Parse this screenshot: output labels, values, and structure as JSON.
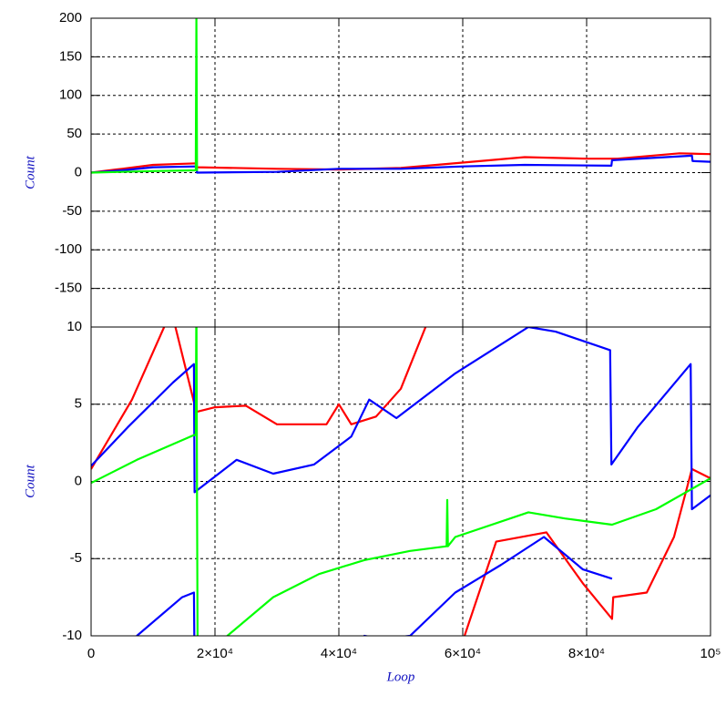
{
  "chart_data": [
    {
      "type": "line",
      "ylabel": "Count",
      "xlim": [
        0,
        100000
      ],
      "ylim": [
        -200,
        200
      ],
      "yticks": [
        200,
        150,
        100,
        50,
        0,
        -50,
        -100,
        -150
      ],
      "grid": true,
      "series": [
        {
          "color": "#ff0000",
          "x": [
            0,
            5000,
            10000,
            17000,
            17100,
            30000,
            40000,
            50000,
            60000,
            70000,
            80000,
            85000,
            95000,
            100000
          ],
          "values": [
            0,
            5,
            10,
            12,
            7,
            5,
            4,
            6,
            13,
            20,
            18,
            18,
            25,
            24
          ]
        },
        {
          "color": "#0000ff",
          "x": [
            0,
            5000,
            10000,
            17000,
            17100,
            30000,
            40000,
            50000,
            60000,
            70000,
            84000,
            84100,
            97000,
            97100,
            100000
          ],
          "values": [
            0,
            3,
            7,
            8,
            0,
            1,
            5,
            5,
            8,
            10,
            9,
            16,
            22,
            15,
            14
          ]
        },
        {
          "color": "#00ff00",
          "x": [
            0,
            10000,
            16900,
            17000,
            17100
          ],
          "values": [
            0,
            2,
            3,
            200,
            2
          ]
        }
      ]
    },
    {
      "type": "line",
      "ylabel": "Count",
      "xlabel": "Loop",
      "xlim": [
        0,
        100000
      ],
      "ylim": [
        -10,
        10
      ],
      "yticks": [
        10,
        5,
        0,
        -5,
        -10
      ],
      "xticks": [
        0,
        {
          "value": 20000,
          "label": "2×10⁴"
        },
        {
          "value": 40000,
          "label": "4×10⁴"
        },
        {
          "value": 60000,
          "label": "6×10⁴"
        },
        {
          "value": 80000,
          "label": "8×10⁴"
        },
        {
          "value": 100000,
          "label": "10⁵"
        }
      ],
      "grid": true,
      "series": [
        {
          "color": "#ff0000",
          "x": [
            0,
            6600,
            11800,
            13000,
            17000,
            20000,
            25000,
            30000,
            38000,
            40000,
            42000,
            46000,
            50000,
            54000,
            55000
          ],
          "values": [
            0.8,
            5.3,
            10,
            11,
            4.5,
            4.8,
            4.9,
            3.7,
            3.7,
            5,
            3.7,
            4.2,
            6,
            10,
            11
          ]
        },
        {
          "color": "#ff0000",
          "x": [
            59500,
            60300,
            65400,
            73500,
            79400,
            84100,
            84300,
            89700,
            94100,
            97000,
            100000
          ],
          "values": [
            -11,
            -10,
            -3.9,
            -3.3,
            -6.6,
            -8.9,
            -7.5,
            -7.2,
            -3.6,
            0.8,
            0.2
          ]
        },
        {
          "color": "#0000ff",
          "x": [
            0,
            5900,
            13200,
            16600,
            16700,
            20600,
            23500,
            29400,
            36000,
            42000,
            44900,
            49300,
            58800,
            70600,
            75000,
            83800,
            84000,
            88200,
            96800,
            97000,
            100000
          ],
          "values": [
            1,
            3.5,
            6.4,
            7.6,
            -0.7,
            0.5,
            1.4,
            0.5,
            1.1,
            2.9,
            5.3,
            4.1,
            7,
            10,
            9.7,
            8.5,
            1.1,
            3.5,
            7.6,
            -1.8,
            -0.9
          ]
        },
        {
          "color": "#0000ff",
          "x": [
            6500,
            7400,
            14700,
            16600,
            16700,
            null,
            43500,
            44100,
            47000,
            51500,
            58800,
            66200,
            73100,
            79400,
            84100
          ],
          "values": [
            -11,
            -10,
            -7.5,
            -7.2,
            -12,
            null,
            -11,
            -10,
            -10.2,
            -10,
            -7.2,
            -5.4,
            -3.6,
            -5.7,
            -6.3
          ]
        },
        {
          "color": "#00ff00",
          "x": [
            0,
            7400,
            16600,
            16900,
            17000,
            17100,
            17200,
            null,
            21000,
            22000,
            29400,
            36800,
            44100,
            51500,
            57400,
            57500,
            57600,
            58800,
            70600,
            76500,
            84100,
            91200,
            100000
          ],
          "values": [
            -0.1,
            1.4,
            3,
            3,
            12,
            -1,
            -12,
            null,
            -11,
            -10,
            -7.5,
            -6,
            -5.1,
            -4.5,
            -4.2,
            -1.2,
            -4.2,
            -3.6,
            -2,
            -2.4,
            -2.8,
            -1.8,
            0.2
          ]
        }
      ]
    }
  ]
}
